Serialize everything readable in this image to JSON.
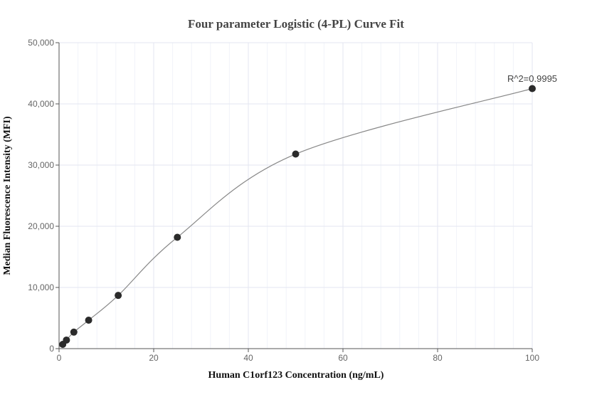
{
  "chart_data": {
    "type": "scatter",
    "title": "Four parameter Logistic (4-PL) Curve Fit",
    "xlabel": "Human C1orf123 Concentration (ng/mL)",
    "ylabel": "Median Fluorescence Intensity (MFI)",
    "xlim": [
      0,
      100
    ],
    "ylim": [
      0,
      50000
    ],
    "x_ticks": [
      "0",
      "20",
      "40",
      "60",
      "80",
      "100"
    ],
    "y_ticks": [
      "0",
      "10,000",
      "20,000",
      "30,000",
      "40,000",
      "50,000"
    ],
    "grid": true,
    "annotation": "R^2=0.9995",
    "points": {
      "x": [
        0.78,
        1.56,
        3.125,
        6.25,
        12.5,
        25,
        50,
        100
      ],
      "y": [
        700,
        1400,
        2700,
        4650,
        8700,
        18200,
        31800,
        42500
      ]
    },
    "colors": {
      "points": "#2b2b2b",
      "curve": "#888888",
      "grid": "#e3e6f0"
    }
  }
}
